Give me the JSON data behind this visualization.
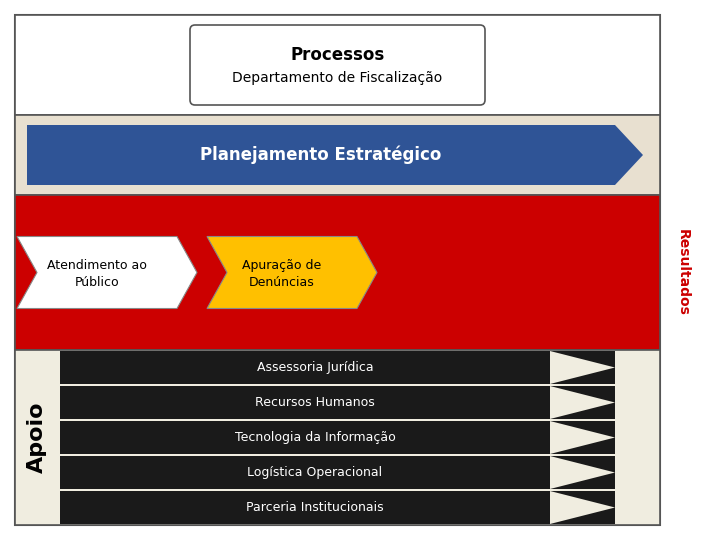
{
  "title_line1": "Processos",
  "title_line2": "Departamento de Fiscalização",
  "section1_label": "Planejamento Estratégico",
  "section1_color": "#2F5496",
  "section1_bg": "#E8E0D0",
  "section2_bg": "#CC0000",
  "arrow1_label_line1": "Atendimento ao",
  "arrow1_label_line2": "Público",
  "arrow1_color": "#FFFFFF",
  "arrow2_label_line1": "Apuração de",
  "arrow2_label_line2": "Denúncias",
  "arrow2_color": "#FFC000",
  "resultados_label": "Resultados",
  "resultados_color": "#CC0000",
  "support_items": [
    "Assessoria Jurídica",
    "Recursos Humanos",
    "Tecnologia da Informação",
    "Logística Operacional",
    "Parceria Institucionais"
  ],
  "apoio_label": "Apoio",
  "outer_bg": "#FFFFFF",
  "section3_bg": "#F0EDE0",
  "border_color": "#555555",
  "text_color_dark": "#000000",
  "text_color_white": "#FFFFFF",
  "row_color": "#1A1A1A"
}
